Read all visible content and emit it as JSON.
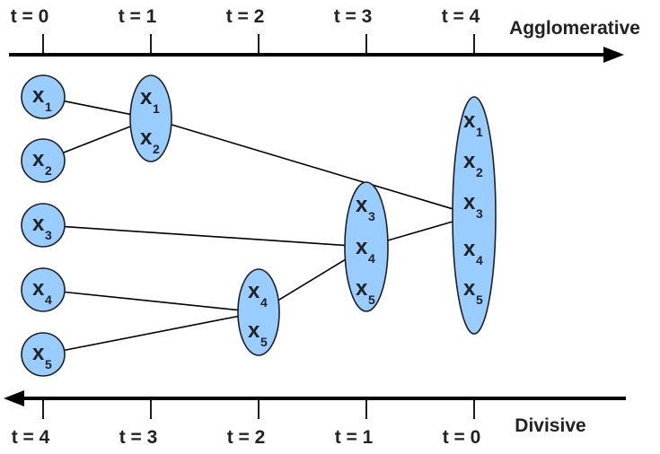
{
  "top_axis": {
    "title": "Agglomerative",
    "ticks": [
      "t = 0",
      "t = 1",
      "t = 2",
      "t = 3",
      "t = 4"
    ]
  },
  "bottom_axis": {
    "title": "Divisive",
    "ticks": [
      "t = 4",
      "t = 3",
      "t = 2",
      "t = 1",
      "t = 0"
    ]
  },
  "colors": {
    "node_fill": "#99ccff",
    "line": "#000000",
    "text": "#222222"
  },
  "clusters": [
    {
      "id": "x1",
      "members": [
        {
          "var": "x",
          "sub": "1"
        }
      ]
    },
    {
      "id": "x2",
      "members": [
        {
          "var": "x",
          "sub": "2"
        }
      ]
    },
    {
      "id": "x3",
      "members": [
        {
          "var": "x",
          "sub": "3"
        }
      ]
    },
    {
      "id": "x4",
      "members": [
        {
          "var": "x",
          "sub": "4"
        }
      ]
    },
    {
      "id": "x5",
      "members": [
        {
          "var": "x",
          "sub": "5"
        }
      ]
    },
    {
      "id": "c12",
      "members": [
        {
          "var": "x",
          "sub": "1"
        },
        {
          "var": "x",
          "sub": "2"
        }
      ]
    },
    {
      "id": "c45",
      "members": [
        {
          "var": "x",
          "sub": "4"
        },
        {
          "var": "x",
          "sub": "5"
        }
      ]
    },
    {
      "id": "c345",
      "members": [
        {
          "var": "x",
          "sub": "3"
        },
        {
          "var": "x",
          "sub": "4"
        },
        {
          "var": "x",
          "sub": "5"
        }
      ]
    },
    {
      "id": "c12345",
      "members": [
        {
          "var": "x",
          "sub": "1"
        },
        {
          "var": "x",
          "sub": "2"
        },
        {
          "var": "x",
          "sub": "3"
        },
        {
          "var": "x",
          "sub": "4"
        },
        {
          "var": "x",
          "sub": "5"
        }
      ]
    }
  ],
  "edges": [
    [
      "x1",
      "c12"
    ],
    [
      "x2",
      "c12"
    ],
    [
      "x4",
      "c45"
    ],
    [
      "x5",
      "c45"
    ],
    [
      "x3",
      "c345"
    ],
    [
      "c45",
      "c345"
    ],
    [
      "c12",
      "c12345"
    ],
    [
      "c345",
      "c12345"
    ]
  ]
}
